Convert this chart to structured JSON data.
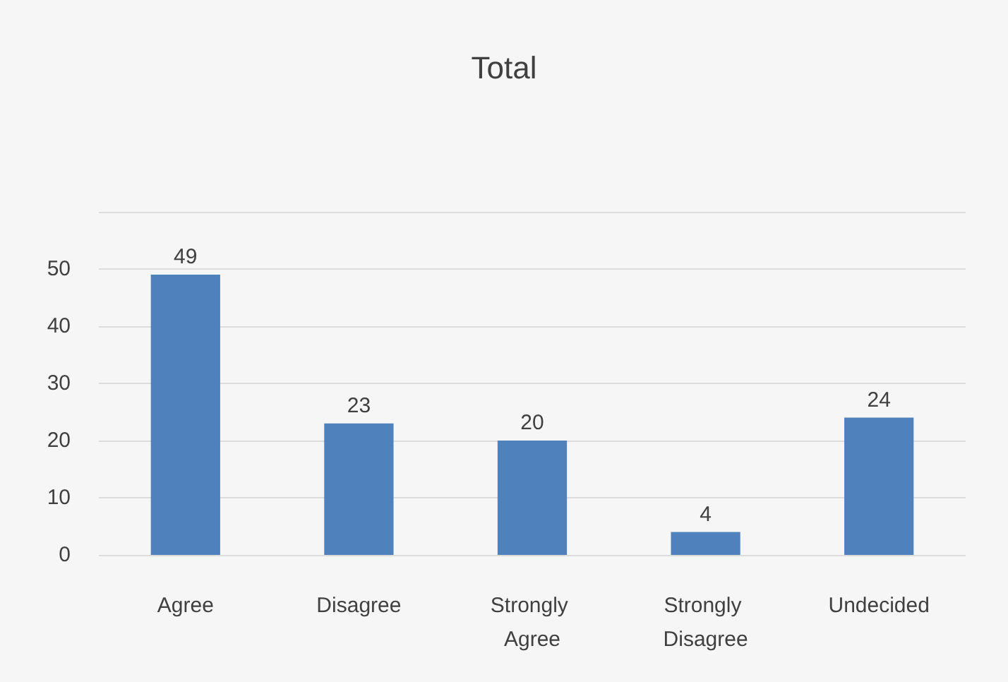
{
  "chart_data": {
    "type": "bar",
    "title": "Total",
    "categories": [
      "Agree",
      "Disagree",
      "Strongly Agree",
      "Strongly Disagree",
      "Undecided"
    ],
    "values": [
      49,
      23,
      20,
      4,
      24
    ],
    "color": "#4f81bd",
    "ylim": [
      0,
      60
    ],
    "yticks": [
      0,
      10,
      20,
      30,
      40,
      50,
      {
        "value": 60,
        "label": null
      }
    ],
    "grid": "y",
    "data_labels": true
  }
}
